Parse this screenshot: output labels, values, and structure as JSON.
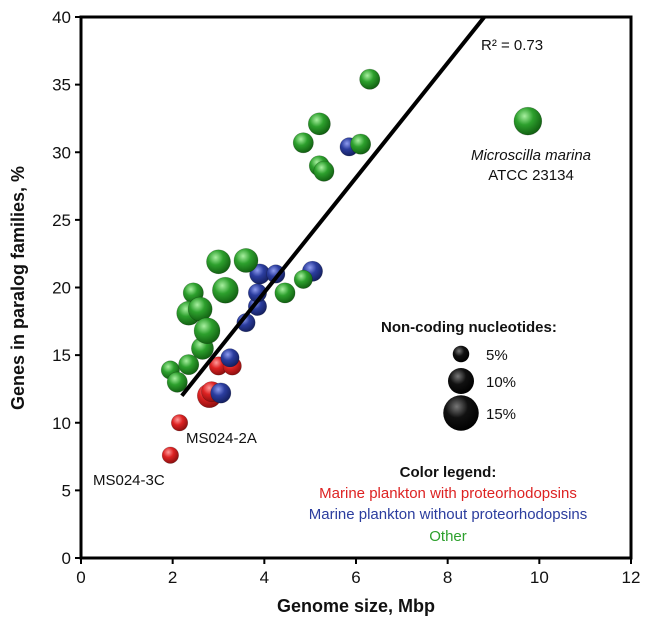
{
  "chart_data": {
    "type": "scatter",
    "xlabel": "Genome size, Mbp",
    "ylabel": "Genes in paralog families, %",
    "xlim": [
      0,
      12
    ],
    "ylim": [
      0,
      40
    ],
    "xticks": [
      "0",
      "2",
      "4",
      "6",
      "8",
      "10",
      "12"
    ],
    "yticks": [
      "0",
      "5",
      "10",
      "15",
      "20",
      "25",
      "30",
      "35",
      "40"
    ],
    "regression": {
      "label": "R² = 0.73",
      "x": [
        2.2,
        8.8
      ],
      "y": [
        12,
        40
      ]
    },
    "series": [
      {
        "name": "Marine plankton with proteorhodopsins",
        "color": "#dd2222",
        "points": [
          {
            "x": 1.95,
            "y": 7.6,
            "noncoding": 5
          },
          {
            "x": 2.15,
            "y": 10.0,
            "noncoding": 5
          },
          {
            "x": 2.8,
            "y": 12.0,
            "noncoding": 9
          },
          {
            "x": 2.85,
            "y": 12.3,
            "noncoding": 7
          },
          {
            "x": 3.0,
            "y": 14.2,
            "noncoding": 6
          },
          {
            "x": 3.3,
            "y": 14.2,
            "noncoding": 6
          }
        ]
      },
      {
        "name": "Marine plankton without proteorhodopsins",
        "color": "#2b3d9e",
        "points": [
          {
            "x": 3.05,
            "y": 12.2,
            "noncoding": 7
          },
          {
            "x": 3.25,
            "y": 14.8,
            "noncoding": 6
          },
          {
            "x": 3.6,
            "y": 17.4,
            "noncoding": 6
          },
          {
            "x": 3.85,
            "y": 18.6,
            "noncoding": 6
          },
          {
            "x": 3.85,
            "y": 19.6,
            "noncoding": 6
          },
          {
            "x": 3.9,
            "y": 21.0,
            "noncoding": 7
          },
          {
            "x": 4.25,
            "y": 21.0,
            "noncoding": 6
          },
          {
            "x": 5.05,
            "y": 21.2,
            "noncoding": 7
          },
          {
            "x": 5.85,
            "y": 30.4,
            "noncoding": 6
          }
        ]
      },
      {
        "name": "Other",
        "color": "#2da02d",
        "points": [
          {
            "x": 1.95,
            "y": 13.9,
            "noncoding": 6
          },
          {
            "x": 2.1,
            "y": 13.0,
            "noncoding": 7
          },
          {
            "x": 2.35,
            "y": 14.3,
            "noncoding": 7
          },
          {
            "x": 2.45,
            "y": 19.6,
            "noncoding": 7
          },
          {
            "x": 2.35,
            "y": 18.1,
            "noncoding": 9
          },
          {
            "x": 2.6,
            "y": 18.4,
            "noncoding": 9
          },
          {
            "x": 2.65,
            "y": 15.5,
            "noncoding": 8
          },
          {
            "x": 2.75,
            "y": 16.8,
            "noncoding": 10
          },
          {
            "x": 3.0,
            "y": 21.9,
            "noncoding": 9
          },
          {
            "x": 3.15,
            "y": 19.8,
            "noncoding": 10
          },
          {
            "x": 3.6,
            "y": 22.0,
            "noncoding": 9
          },
          {
            "x": 4.45,
            "y": 19.6,
            "noncoding": 7
          },
          {
            "x": 4.85,
            "y": 20.6,
            "noncoding": 6
          },
          {
            "x": 4.85,
            "y": 30.7,
            "noncoding": 7
          },
          {
            "x": 5.2,
            "y": 29.0,
            "noncoding": 7
          },
          {
            "x": 5.3,
            "y": 28.6,
            "noncoding": 7
          },
          {
            "x": 5.2,
            "y": 32.1,
            "noncoding": 8
          },
          {
            "x": 6.1,
            "y": 30.6,
            "noncoding": 7
          },
          {
            "x": 6.3,
            "y": 35.4,
            "noncoding": 7
          },
          {
            "x": 9.75,
            "y": 32.3,
            "noncoding": 11
          }
        ]
      }
    ],
    "annotations": [
      {
        "text": "Microscilla marina",
        "italic": true
      },
      {
        "text": "ATCC 23134",
        "italic": false
      },
      {
        "text": "MS024-2A",
        "italic": false
      },
      {
        "text": "MS024-3C",
        "italic": false
      }
    ],
    "size_legend": {
      "title": "Non-coding nucleotides:",
      "items": [
        {
          "label": "5%",
          "noncoding": 5
        },
        {
          "label": "10%",
          "noncoding": 10
        },
        {
          "label": "15%",
          "noncoding": 15
        }
      ]
    },
    "color_legend": {
      "title": "Color legend:",
      "items": [
        {
          "label": "Marine plankton with proteorhodopsins",
          "color": "#dd2222"
        },
        {
          "label": "Marine plankton without proteorhodopsins",
          "color": "#2b3d9e"
        },
        {
          "label": "Other",
          "color": "#2da02d"
        }
      ]
    }
  }
}
